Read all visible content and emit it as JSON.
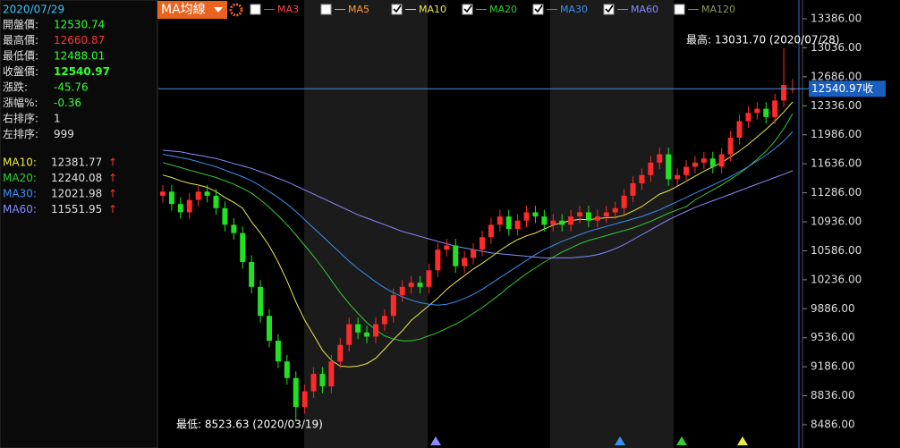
{
  "chart_data": {
    "type": "candlestick",
    "up_color": "#ff2a2a",
    "down_color": "#22e022",
    "open": [
      11250,
      11300,
      11150,
      11050,
      11200,
      11300,
      11250,
      11100,
      10900,
      10800,
      10450,
      10150,
      9800,
      9500,
      9250,
      9050,
      8700,
      8890,
      9100,
      8950,
      9250,
      9450,
      9700,
      9600,
      9550,
      9700,
      9800,
      10050,
      10150,
      10200,
      10150,
      10350,
      10600,
      10650,
      10400,
      10500,
      10600,
      10750,
      10900,
      11000,
      10850,
      10950,
      11050,
      11000,
      10900,
      10950,
      10900,
      11000,
      11050,
      10950,
      11000,
      11050,
      11100,
      11250,
      11400,
      11500,
      11650,
      11750,
      11450,
      11500,
      11600,
      11650,
      11700,
      11600,
      11750,
      11950,
      12150,
      12250,
      12300,
      12200,
      12400,
      12530.74
    ],
    "high": [
      11380,
      11380,
      11230,
      11280,
      11380,
      11380,
      11330,
      11180,
      10980,
      10880,
      10530,
      10230,
      9880,
      9580,
      9330,
      9130,
      8970,
      9180,
      9180,
      9330,
      9530,
      9780,
      9780,
      9680,
      9780,
      9880,
      10130,
      10230,
      10280,
      10280,
      10430,
      10680,
      10730,
      10730,
      10580,
      10680,
      10830,
      10980,
      11080,
      11080,
      11030,
      11130,
      11130,
      11080,
      11030,
      11030,
      11080,
      11130,
      11130,
      11080,
      11130,
      11180,
      11330,
      11480,
      11580,
      11730,
      11830,
      11830,
      11580,
      11680,
      11730,
      11780,
      11780,
      11830,
      12030,
      12230,
      12330,
      12380,
      12380,
      12480,
      13031.7,
      12660.87
    ],
    "low": [
      11170,
      11070,
      10970,
      10970,
      11120,
      11170,
      11020,
      10820,
      10720,
      10370,
      10070,
      9720,
      9420,
      9170,
      8970,
      8523.63,
      8620,
      8810,
      8870,
      8870,
      9170,
      9370,
      9520,
      9470,
      9470,
      9620,
      9720,
      9970,
      10070,
      10070,
      10070,
      10270,
      10520,
      10320,
      10320,
      10420,
      10520,
      10670,
      10820,
      10770,
      10770,
      10870,
      10920,
      10820,
      10820,
      10820,
      10820,
      10920,
      10870,
      10870,
      10920,
      10970,
      11020,
      11170,
      11320,
      11420,
      11570,
      11370,
      11370,
      11420,
      11520,
      11570,
      11520,
      11520,
      11670,
      11870,
      12070,
      12170,
      12120,
      12120,
      12320,
      12488.01
    ],
    "close": [
      11300,
      11150,
      11050,
      11200,
      11300,
      11250,
      11100,
      10900,
      10800,
      10450,
      10150,
      9800,
      9500,
      9250,
      9050,
      8700,
      8890,
      9100,
      8950,
      9250,
      9450,
      9700,
      9600,
      9550,
      9700,
      9800,
      10050,
      10150,
      10200,
      10150,
      10350,
      10600,
      10650,
      10400,
      10500,
      10600,
      10750,
      10900,
      11000,
      10850,
      10950,
      11050,
      11000,
      10900,
      10950,
      10900,
      11000,
      11050,
      10950,
      11000,
      11050,
      11100,
      11250,
      11400,
      11500,
      11650,
      11750,
      11450,
      11500,
      11600,
      11650,
      11700,
      11600,
      11750,
      11950,
      12150,
      12250,
      12300,
      12200,
      12400,
      12586.73,
      12540.97
    ],
    "series": [
      {
        "color": "#e8e84a",
        "values": [
          11500,
          11470,
          11430,
          11400,
          11380,
          11350,
          11300,
          11230,
          11170,
          11100,
          10935,
          10800,
          10645,
          10450,
          10225,
          9970,
          9749,
          9569,
          9384,
          9264,
          9194,
          9184,
          9194,
          9224,
          9289,
          9399,
          9515,
          9620,
          9745,
          9835,
          9925,
          10015,
          10120,
          10205,
          10285,
          10365,
          10435,
          10510,
          10590,
          10660,
          10720,
          10765,
          10800,
          10850,
          10895,
          10925,
          10950,
          10965,
          10960,
          10975,
          10985,
          10990,
          11015,
          11065,
          11120,
          11195,
          11270,
          11310,
          11365,
          11425,
          11485,
          11545,
          11600,
          11650,
          11720,
          11790,
          11870,
          11960,
          12050,
          12150,
          12260,
          12381.77
        ]
      },
      {
        "color": "#33cc33",
        "values": [
          11650,
          11620,
          11590,
          11560,
          11530,
          11500,
          11470,
          11430,
          11390,
          11340,
          11280,
          11200,
          11110,
          11010,
          10900,
          10780,
          10650,
          10520,
          10380,
          10230,
          10080,
          9950,
          9830,
          9720,
          9630,
          9560,
          9520,
          9500,
          9500,
          9520,
          9560,
          9600,
          9650,
          9700,
          9760,
          9830,
          9900,
          9980,
          10060,
          10150,
          10230,
          10310,
          10380,
          10450,
          10510,
          10570,
          10620,
          10670,
          10710,
          10740,
          10770,
          10800,
          10830,
          10860,
          10900,
          10940,
          10990,
          11040,
          11080,
          11120,
          11200,
          11260,
          11320,
          11380,
          11450,
          11520,
          11600,
          11690,
          11790,
          11910,
          12060,
          12240.08
        ]
      },
      {
        "color": "#3a8ff0",
        "values": [
          11750,
          11730,
          11710,
          11690,
          11660,
          11630,
          11600,
          11560,
          11520,
          11480,
          11430,
          11370,
          11300,
          11230,
          11150,
          11060,
          10960,
          10860,
          10760,
          10660,
          10560,
          10460,
          10370,
          10290,
          10210,
          10140,
          10080,
          10030,
          9990,
          9960,
          9940,
          9930,
          9940,
          9970,
          10010,
          10060,
          10120,
          10190,
          10260,
          10330,
          10400,
          10470,
          10540,
          10600,
          10650,
          10700,
          10740,
          10780,
          10820,
          10850,
          10880,
          10910,
          10940,
          10970,
          11000,
          11040,
          11080,
          11130,
          11180,
          11230,
          11280,
          11330,
          11380,
          11430,
          11480,
          11540,
          11600,
          11670,
          11740,
          11820,
          11910,
          12021.98
        ]
      },
      {
        "color": "#8a8aff",
        "values": [
          11800,
          11790,
          11780,
          11760,
          11740,
          11720,
          11700,
          11670,
          11640,
          11610,
          11580,
          11540,
          11500,
          11460,
          11420,
          11370,
          11320,
          11270,
          11220,
          11170,
          11120,
          11070,
          11020,
          10980,
          10940,
          10900,
          10860,
          10820,
          10790,
          10760,
          10730,
          10700,
          10670,
          10640,
          10620,
          10600,
          10580,
          10560,
          10550,
          10540,
          10530,
          10520,
          10510,
          10500,
          10500,
          10500,
          10500,
          10510,
          10520,
          10540,
          10570,
          10610,
          10660,
          10720,
          10780,
          10840,
          10900,
          10960,
          11010,
          11060,
          11110,
          11150,
          11190,
          11230,
          11270,
          11310,
          11350,
          11390,
          11430,
          11470,
          11510,
          11551.95
        ]
      }
    ],
    "ylim": [
      8205.4,
      13612.7
    ],
    "yticks": [
      {
        "value": 8486,
        "label": "8486.00"
      },
      {
        "value": 8836,
        "label": "8836.00"
      },
      {
        "value": 9186,
        "label": "9186.00"
      },
      {
        "value": 9536,
        "label": "9536.00"
      },
      {
        "value": 9886,
        "label": "9886.00"
      },
      {
        "value": 10236,
        "label": "10236.00"
      },
      {
        "value": 10586,
        "label": "10586.00"
      },
      {
        "value": 10936,
        "label": "10936.00"
      },
      {
        "value": 11286,
        "label": "11286.00"
      },
      {
        "value": 11636,
        "label": "11636.00"
      },
      {
        "value": 11986,
        "label": "11986.00"
      },
      {
        "value": 12336,
        "label": "12336.00"
      },
      {
        "value": 12686,
        "label": "12686.00"
      },
      {
        "value": 13036,
        "label": "13036.00"
      },
      {
        "value": 13386,
        "label": "13386.00"
      }
    ],
    "high_note": "最高: 13031.70 (2020/07/28)",
    "low_note": "最低: 8523.63 (2020/03/19)",
    "close_label": "12540.97收",
    "button": "MA均線",
    "ma_options": [
      {
        "name": "MA3",
        "color": "#ff4040",
        "checked": false
      },
      {
        "name": "MA5",
        "color": "#ff9a30",
        "checked": false
      },
      {
        "name": "MA10",
        "color": "#e8e84a",
        "checked": true
      },
      {
        "name": "MA20",
        "color": "#33cc33",
        "checked": true
      },
      {
        "name": "MA30",
        "color": "#3a8ff0",
        "checked": true
      },
      {
        "name": "MA60",
        "color": "#8a8aff",
        "checked": true
      },
      {
        "name": "MA120",
        "color": "#889966",
        "checked": false
      }
    ]
  },
  "panel": {
    "date": "2020/07/29",
    "rows": [
      {
        "label": "開盤價:",
        "value": "12530.74",
        "color": "#33ff33"
      },
      {
        "label": "最高價:",
        "value": "12660.87",
        "color": "#ff3333"
      },
      {
        "label": "最低價:",
        "value": "12488.01",
        "color": "#33ff33"
      },
      {
        "label": "收盤價:",
        "value": "12540.97",
        "color": "#33ff33"
      },
      {
        "label": "漲跌:",
        "value": "-45.76",
        "color": "#33ff33"
      },
      {
        "label": "漲幅%:",
        "value": "-0.36",
        "color": "#33ff33"
      },
      {
        "label": "右排序:",
        "value": "1",
        "color": "#e0e0e0"
      },
      {
        "label": "左排序:",
        "value": "999",
        "color": "#e0e0e0"
      }
    ],
    "ma_rows": [
      {
        "label": "MA10:",
        "value": "12381.77",
        "arrow": "↑",
        "color": "#e8e84a"
      },
      {
        "label": "MA20:",
        "value": "12240.08",
        "arrow": "↑",
        "color": "#33cc33"
      },
      {
        "label": "MA30:",
        "value": "12021.98",
        "arrow": "↑",
        "color": "#3a8ff0"
      },
      {
        "label": "MA60:",
        "value": "11551.95",
        "arrow": "↑",
        "color": "#8a8aff"
      }
    ]
  }
}
